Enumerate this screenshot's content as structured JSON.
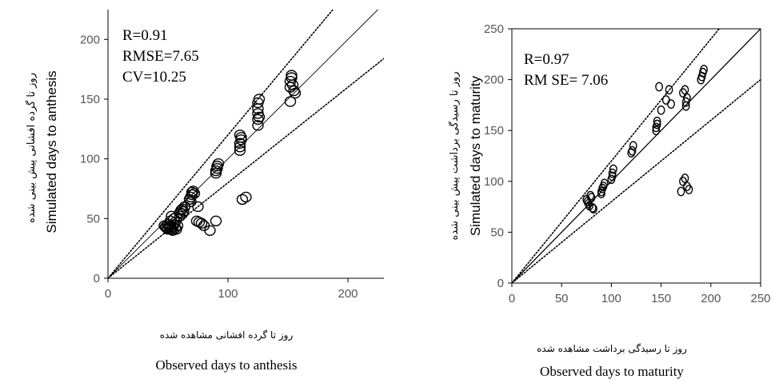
{
  "chart_data": [
    {
      "type": "scatter",
      "title": "",
      "xlabel": "Observed days to anthesis",
      "xlabel_fa": "روز تا گرده افشانی مشاهده شده",
      "ylabel": "Simulated  days to anthesis",
      "ylabel_fa": "روز تا گرده افشانی پیش بینی شده",
      "xlim": [
        0,
        230
      ],
      "ylim": [
        0,
        225
      ],
      "xticks": [
        0,
        100,
        200
      ],
      "yticks": [
        0,
        50,
        100,
        150,
        200
      ],
      "stats": [
        "R=0.91",
        "RMSE=7.65",
        "CV=10.25"
      ],
      "lines": [
        {
          "kind": "1:1",
          "style": "solid",
          "slope": 1
        },
        {
          "kind": "upper-bound",
          "style": "dotted",
          "slope": 1.2
        },
        {
          "kind": "lower-bound",
          "style": "dotted",
          "slope": 0.8
        }
      ],
      "x": [
        47,
        48,
        49,
        50,
        50,
        51,
        52,
        52,
        53,
        54,
        54,
        55,
        56,
        56,
        57,
        58,
        52,
        55,
        53,
        60,
        61,
        62,
        63,
        64,
        60,
        62,
        68,
        69,
        70,
        70,
        71,
        72,
        69,
        75,
        74,
        76,
        78,
        80,
        85,
        90,
        90,
        90,
        91,
        91,
        92,
        110,
        110,
        110,
        111,
        111,
        110,
        112,
        115,
        125,
        125,
        125,
        125,
        125,
        126,
        126,
        152,
        152,
        152,
        153,
        153,
        154,
        155,
        156
      ],
      "y": [
        44,
        43,
        42,
        41,
        45,
        43,
        44,
        42,
        41,
        40,
        43,
        45,
        42,
        47,
        41,
        44,
        48,
        50,
        52,
        55,
        57,
        58,
        56,
        60,
        52,
        54,
        66,
        68,
        70,
        72,
        73,
        71,
        64,
        60,
        48,
        47,
        46,
        44,
        40,
        48,
        88,
        90,
        92,
        94,
        96,
        107,
        110,
        113,
        116,
        118,
        120,
        66,
        68,
        128,
        133,
        138,
        142,
        147,
        150,
        135,
        148,
        160,
        165,
        168,
        170,
        162,
        157,
        155
      ]
    },
    {
      "type": "scatter",
      "title": "",
      "xlabel": "Observed days to maturity",
      "xlabel_fa": "روز تا رسیدگی برداشت مشاهده شده",
      "ylabel": "Simulated  days to maturity",
      "ylabel_fa": "روز تا رسیدگی برداشت پیش بینی شده",
      "xlim": [
        0,
        250
      ],
      "ylim": [
        0,
        250
      ],
      "xticks": [
        0,
        50,
        100,
        150,
        200,
        250
      ],
      "yticks": [
        0,
        50,
        100,
        150,
        200,
        250
      ],
      "stats": [
        "R=0.97",
        "RM SE= 7.06"
      ],
      "lines": [
        {
          "kind": "1:1",
          "style": "solid",
          "slope": 1
        },
        {
          "kind": "upper-bound",
          "style": "dotted",
          "slope": 1.2
        },
        {
          "kind": "lower-bound",
          "style": "dotted",
          "slope": 0.8
        }
      ],
      "x": [
        75,
        76,
        77,
        78,
        79,
        80,
        81,
        82,
        90,
        90,
        91,
        92,
        93,
        100,
        101,
        101,
        102,
        120,
        121,
        122,
        145,
        145,
        146,
        146,
        148,
        150,
        155,
        158,
        160,
        172,
        174,
        175,
        175,
        176,
        190,
        191,
        192,
        193,
        170,
        172,
        174,
        176,
        178
      ],
      "y": [
        82,
        80,
        78,
        76,
        86,
        84,
        74,
        73,
        88,
        90,
        93,
        95,
        98,
        102,
        105,
        108,
        112,
        128,
        130,
        135,
        150,
        153,
        156,
        159,
        193,
        170,
        180,
        190,
        176,
        187,
        190,
        174,
        178,
        182,
        200,
        203,
        207,
        210,
        90,
        100,
        103,
        95,
        92
      ]
    }
  ]
}
